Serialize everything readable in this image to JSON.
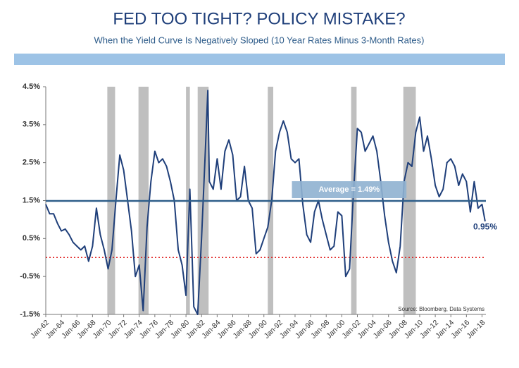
{
  "chart_data": {
    "type": "line",
    "title": "FED TOO TIGHT? POLICY MISTAKE?",
    "subtitle": "When the Yield Curve Is Negatively Sloped (10 Year Rates Minus 3-Month Rates)",
    "source": "Source:  Bloomberg, Data Systems",
    "x": [
      1962.0,
      1962.5,
      1963.0,
      1963.5,
      1964.0,
      1964.5,
      1965.0,
      1965.5,
      1966.0,
      1966.5,
      1967.0,
      1967.5,
      1968.0,
      1968.5,
      1969.0,
      1969.5,
      1970.0,
      1970.5,
      1971.0,
      1971.5,
      1972.0,
      1972.5,
      1973.0,
      1973.5,
      1974.0,
      1974.5,
      1975.0,
      1975.5,
      1976.0,
      1976.5,
      1977.0,
      1977.5,
      1978.0,
      1978.5,
      1979.0,
      1979.5,
      1980.0,
      1980.5,
      1981.0,
      1981.5,
      1982.0,
      1982.5,
      1982.8,
      1983.0,
      1983.5,
      1984.0,
      1984.5,
      1985.0,
      1985.5,
      1986.0,
      1986.5,
      1987.0,
      1987.5,
      1988.0,
      1988.5,
      1989.0,
      1989.5,
      1990.0,
      1990.5,
      1991.0,
      1991.5,
      1992.0,
      1992.5,
      1993.0,
      1993.5,
      1994.0,
      1994.5,
      1995.0,
      1995.5,
      1996.0,
      1996.5,
      1997.0,
      1997.5,
      1998.0,
      1998.5,
      1999.0,
      1999.5,
      2000.0,
      2000.5,
      2001.0,
      2001.5,
      2002.0,
      2002.5,
      2003.0,
      2003.5,
      2004.0,
      2004.5,
      2005.0,
      2005.5,
      2006.0,
      2006.5,
      2007.0,
      2007.5,
      2008.0,
      2008.5,
      2009.0,
      2009.5,
      2010.0,
      2010.5,
      2011.0,
      2011.5,
      2012.0,
      2012.5,
      2013.0,
      2013.5,
      2014.0,
      2014.5,
      2015.0,
      2015.5,
      2016.0,
      2016.5,
      2017.0,
      2017.5,
      2018.0,
      2018.4
    ],
    "series": [
      {
        "name": "10Y minus 3M",
        "color": "#1f3f7a",
        "values": [
          1.4,
          1.15,
          1.15,
          0.9,
          0.7,
          0.75,
          0.6,
          0.4,
          0.3,
          0.2,
          0.3,
          -0.1,
          0.3,
          1.3,
          0.6,
          0.2,
          -0.3,
          0.2,
          1.5,
          2.7,
          2.3,
          1.5,
          0.7,
          -0.5,
          -0.2,
          -1.4,
          0.8,
          2.0,
          2.8,
          2.5,
          2.6,
          2.4,
          2.0,
          1.5,
          0.2,
          -0.2,
          -1.0,
          1.8,
          -1.3,
          -1.5,
          0.5,
          2.9,
          4.4,
          2.0,
          1.8,
          2.6,
          1.8,
          2.8,
          3.1,
          2.7,
          1.5,
          1.6,
          2.4,
          1.5,
          1.3,
          0.1,
          0.2,
          0.5,
          0.8,
          1.5,
          2.8,
          3.3,
          3.6,
          3.3,
          2.6,
          2.5,
          2.6,
          1.4,
          0.6,
          0.4,
          1.2,
          1.5,
          1.0,
          0.6,
          0.2,
          0.3,
          1.2,
          1.1,
          -0.5,
          -0.3,
          1.7,
          3.4,
          3.3,
          2.8,
          3.0,
          3.2,
          2.8,
          2.0,
          1.1,
          0.4,
          -0.1,
          -0.4,
          0.3,
          2.0,
          2.5,
          2.4,
          3.3,
          3.7,
          2.8,
          3.2,
          2.6,
          1.9,
          1.6,
          1.8,
          2.5,
          2.6,
          2.4,
          1.9,
          2.2,
          2.0,
          1.2,
          2.0,
          1.3,
          1.4,
          0.95
        ]
      }
    ],
    "recessions": [
      [
        1969.9,
        1970.9
      ],
      [
        1973.9,
        1975.2
      ],
      [
        1980.0,
        1980.5
      ],
      [
        1981.5,
        1982.9
      ],
      [
        1990.5,
        1991.2
      ],
      [
        2001.2,
        2001.9
      ],
      [
        2007.9,
        2009.5
      ]
    ],
    "average": {
      "value": 1.49,
      "label": "Average = 1.49%"
    },
    "zero_line": 0,
    "end_label": {
      "value": 0.95,
      "label": "0.95%"
    },
    "xlim": [
      1962,
      2018.5
    ],
    "xticks": [
      {
        "value": 1962,
        "label": "Jan-62"
      },
      {
        "value": 1964,
        "label": "Jan-64"
      },
      {
        "value": 1966,
        "label": "Jan-66"
      },
      {
        "value": 1968,
        "label": "Jan-68"
      },
      {
        "value": 1970,
        "label": "Jan-70"
      },
      {
        "value": 1972,
        "label": "Jan-72"
      },
      {
        "value": 1974,
        "label": "Jan-74"
      },
      {
        "value": 1976,
        "label": "Jan-76"
      },
      {
        "value": 1978,
        "label": "Jan-78"
      },
      {
        "value": 1980,
        "label": "Jan-80"
      },
      {
        "value": 1982,
        "label": "Jan-82"
      },
      {
        "value": 1984,
        "label": "Jan-84"
      },
      {
        "value": 1986,
        "label": "Jan-86"
      },
      {
        "value": 1988,
        "label": "Jan-88"
      },
      {
        "value": 1990,
        "label": "Jan-90"
      },
      {
        "value": 1992,
        "label": "Jan-92"
      },
      {
        "value": 1994,
        "label": "Jan-94"
      },
      {
        "value": 1996,
        "label": "Jan-96"
      },
      {
        "value": 1998,
        "label": "Jan-98"
      },
      {
        "value": 2000,
        "label": "Jan-00"
      },
      {
        "value": 2002,
        "label": "Jan-02"
      },
      {
        "value": 2004,
        "label": "Jan-04"
      },
      {
        "value": 2006,
        "label": "Jan-06"
      },
      {
        "value": 2008,
        "label": "Jan-08"
      },
      {
        "value": 2010,
        "label": "Jan-10"
      },
      {
        "value": 2012,
        "label": "Jan-12"
      },
      {
        "value": 2014,
        "label": "Jan-14"
      },
      {
        "value": 2016,
        "label": "Jan-16"
      },
      {
        "value": 2018,
        "label": "Jan-18"
      }
    ],
    "ylim": [
      -1.5,
      4.5
    ],
    "yticks": [
      {
        "value": -1.5,
        "label": "-1.5%"
      },
      {
        "value": -0.5,
        "label": "-0.5%"
      },
      {
        "value": 0.5,
        "label": "0.5%"
      },
      {
        "value": 1.5,
        "label": "1.5%"
      },
      {
        "value": 2.5,
        "label": "2.5%"
      },
      {
        "value": 3.5,
        "label": "3.5%"
      },
      {
        "value": 4.5,
        "label": "4.5%"
      }
    ]
  }
}
